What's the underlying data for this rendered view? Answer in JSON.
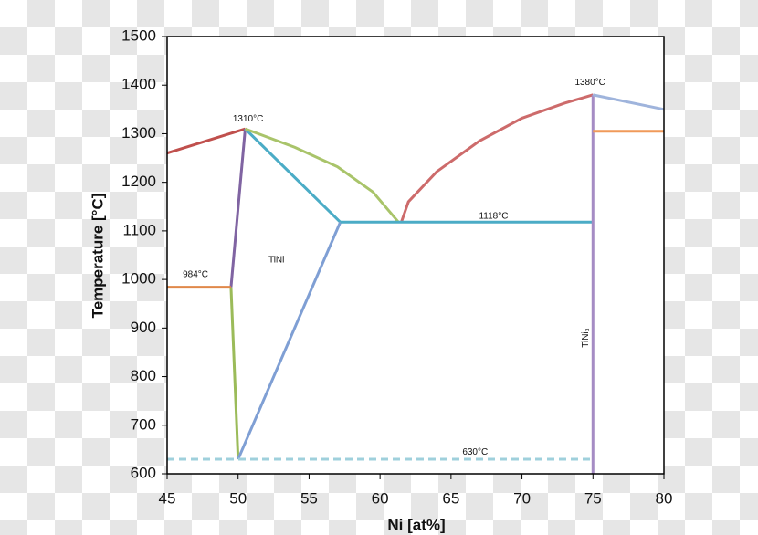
{
  "chart_data": {
    "type": "line",
    "xlabel": "Ni [at%]",
    "ylabel": "Temperature [°C]",
    "xlim": [
      45,
      80
    ],
    "xticks": [
      45,
      50,
      55,
      60,
      65,
      70,
      75,
      80
    ],
    "ylim": [
      600,
      1500
    ],
    "yticks": [
      600,
      700,
      800,
      900,
      1000,
      1100,
      1200,
      1300,
      1400,
      1500
    ],
    "series": [
      {
        "color": "#c0504d",
        "x": [
          45,
          50.5
        ],
        "values": [
          1260,
          1310
        ]
      },
      {
        "color": "#8064a2",
        "x": [
          50.5,
          49.5
        ],
        "values": [
          1310,
          984
        ]
      },
      {
        "color": "#9bbb59",
        "x": [
          49.5,
          50
        ],
        "values": [
          984,
          630
        ]
      },
      {
        "color": "#4bacc6",
        "x": [
          50.5,
          57.2
        ],
        "values": [
          1310,
          1118
        ]
      },
      {
        "color": "#7f9fd4",
        "x": [
          50,
          57.2
        ],
        "values": [
          630,
          1118
        ]
      },
      {
        "color": "#a9c46a",
        "x": [
          50.5,
          54,
          57,
          59.5,
          61.3
        ],
        "values": [
          1310,
          1272,
          1232,
          1180,
          1118
        ]
      },
      {
        "color": "#cd6b6b",
        "x": [
          61.5,
          62,
          64,
          67,
          70,
          73,
          75
        ],
        "values": [
          1118,
          1160,
          1222,
          1285,
          1332,
          1363,
          1380
        ]
      },
      {
        "color": "#4bacc6",
        "x": [
          57.2,
          75
        ],
        "values": [
          1118,
          1118
        ]
      },
      {
        "color": "#e0884a",
        "x": [
          45,
          49.5
        ],
        "values": [
          984,
          984
        ]
      },
      {
        "color": "#9fd0dc",
        "dashed": true,
        "x": [
          45,
          75
        ],
        "values": [
          630,
          630
        ]
      },
      {
        "color": "#a58cc4",
        "x": [
          75,
          75
        ],
        "values": [
          600,
          1380
        ]
      },
      {
        "color": "#9fb4dc",
        "x": [
          75,
          80
        ],
        "values": [
          1380,
          1350
        ]
      },
      {
        "color": "#f09a5a",
        "x": [
          75,
          80
        ],
        "values": [
          1305,
          1305
        ]
      }
    ],
    "annotations": [
      "1310°C",
      "1380°C",
      "1118°C",
      "984°C",
      "630°C",
      "TiNi",
      "TiNi₃"
    ]
  }
}
